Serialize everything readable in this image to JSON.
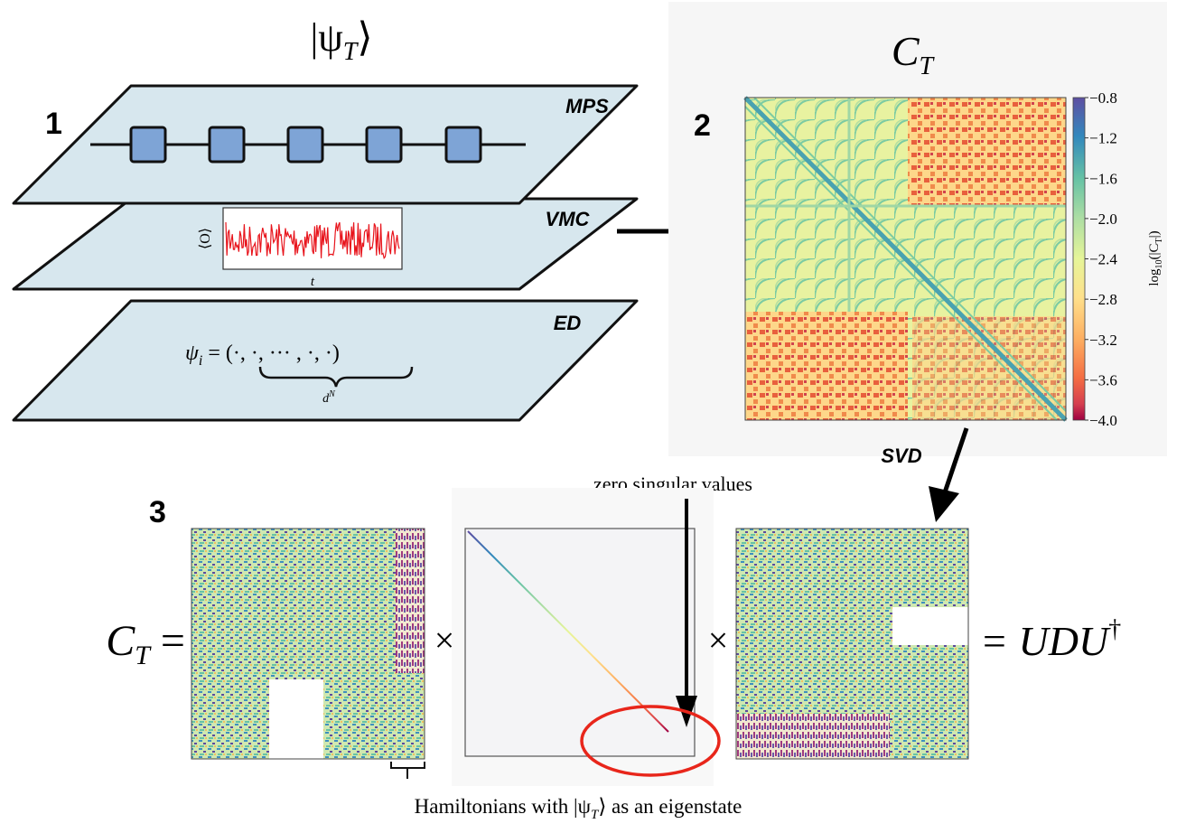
{
  "panel1": {
    "label": "1",
    "state": [
      "|ψ",
      "T",
      "⟩"
    ],
    "planes": [
      "MPS",
      "VMC",
      "ED"
    ],
    "vmc_ylabel": "⟨O⟩",
    "vmc_xlabel": "t",
    "ed_formula": [
      "ψ",
      "i",
      " = (·, ·, ··· , ·, ·)"
    ],
    "ed_brace": [
      "d",
      "N"
    ]
  },
  "panel2": {
    "label": "2",
    "title": [
      "C",
      "T"
    ],
    "colorbar_ticks": [
      "−0.8",
      "−1.2",
      "−1.6",
      "−2.0",
      "−2.4",
      "−2.8",
      "−3.2",
      "−3.6",
      "−4.0"
    ],
    "colorbar_label": [
      "log",
      "10",
      "(|C",
      "T",
      "|)"
    ],
    "arrow_label": "SVD"
  },
  "panel3": {
    "label": "3",
    "lhs": [
      "C",
      "T",
      " ="
    ],
    "times": "×",
    "rhs": [
      "= UDU",
      "†"
    ],
    "annotation": "zero singular values",
    "caption": [
      "Hamiltonians with |ψ",
      "T",
      "⟩ as an eigenstate"
    ]
  }
}
